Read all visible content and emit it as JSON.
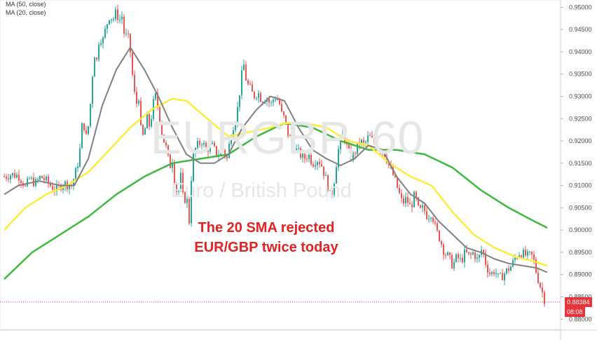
{
  "legend": {
    "ma50_label": "MA (50, close)",
    "ma20_label": "MA (20, close)"
  },
  "watermark": {
    "symbol": "EURGBP, 60",
    "name": "Euro / British Pound"
  },
  "annotation": {
    "line1": "The 20 SMA rejected",
    "line2": "EUR/GBP twice today"
  },
  "price_badge": {
    "price": "0.88384",
    "countdown": "08:08"
  },
  "colors": {
    "up": "#26a69a",
    "down": "#ef5350",
    "ma20": "#ffeb3b",
    "ma50": "#3db93d",
    "ma_short": "#808080",
    "annotation": "#e32222",
    "badge": "#e8333a"
  },
  "chart_data": {
    "type": "candlestick",
    "title": "EURGBP, 60",
    "subtitle": "Euro / British Pound",
    "ylim": [
      0.878,
      0.951
    ],
    "y_ticks": [
      0.95,
      0.945,
      0.94,
      0.935,
      0.93,
      0.925,
      0.92,
      0.915,
      0.91,
      0.905,
      0.9,
      0.895,
      0.89,
      0.885,
      0.88
    ],
    "y_tick_labels": [
      "0.95000",
      "0.94500",
      "0.94000",
      "0.93500",
      "0.93000",
      "0.92500",
      "0.92000",
      "0.91500",
      "0.91000",
      "0.90500",
      "0.90000",
      "0.89500",
      "0.89000",
      "0.88500",
      "0.88000"
    ],
    "current_price": 0.88384,
    "close_path": [
      [
        0,
        0.912
      ],
      [
        10,
        0.9125
      ],
      [
        20,
        0.9122
      ],
      [
        26,
        0.911
      ],
      [
        30,
        0.9095
      ],
      [
        36,
        0.9115
      ],
      [
        45,
        0.9105
      ],
      [
        52,
        0.912
      ],
      [
        60,
        0.911
      ],
      [
        66,
        0.91
      ],
      [
        74,
        0.909
      ],
      [
        84,
        0.9105
      ],
      [
        96,
        0.91
      ],
      [
        104,
        0.914
      ],
      [
        108,
        0.918
      ],
      [
        112,
        0.925
      ],
      [
        118,
        0.92
      ],
      [
        124,
        0.93
      ],
      [
        128,
        0.94
      ],
      [
        132,
        0.938
      ],
      [
        136,
        0.944
      ],
      [
        140,
        0.942
      ],
      [
        146,
        0.946
      ],
      [
        150,
        0.948
      ],
      [
        156,
        0.9475
      ],
      [
        160,
        0.949
      ],
      [
        164,
        0.947
      ],
      [
        168,
        0.948
      ],
      [
        172,
        0.943
      ],
      [
        176,
        0.944
      ],
      [
        180,
        0.94
      ],
      [
        184,
        0.933
      ],
      [
        188,
        0.928
      ],
      [
        192,
        0.93
      ],
      [
        196,
        0.92
      ],
      [
        200,
        0.922
      ],
      [
        204,
        0.925
      ],
      [
        208,
        0.923
      ],
      [
        212,
        0.928
      ],
      [
        216,
        0.93
      ],
      [
        220,
        0.927
      ],
      [
        226,
        0.921
      ],
      [
        232,
        0.918
      ],
      [
        236,
        0.914
      ],
      [
        240,
        0.916
      ],
      [
        244,
        0.91
      ],
      [
        248,
        0.908
      ],
      [
        252,
        0.912
      ],
      [
        256,
        0.906
      ],
      [
        260,
        0.908
      ],
      [
        264,
        0.902
      ],
      [
        268,
        0.915
      ],
      [
        272,
        0.918
      ],
      [
        276,
        0.919
      ],
      [
        282,
        0.92
      ],
      [
        288,
        0.918
      ],
      [
        296,
        0.919
      ],
      [
        304,
        0.917
      ],
      [
        312,
        0.918
      ],
      [
        318,
        0.916
      ],
      [
        324,
        0.922
      ],
      [
        330,
        0.925
      ],
      [
        334,
        0.928
      ],
      [
        338,
        0.934
      ],
      [
        342,
        0.937
      ],
      [
        346,
        0.933
      ],
      [
        350,
        0.932
      ],
      [
        356,
        0.93
      ],
      [
        362,
        0.931
      ],
      [
        368,
        0.929
      ],
      [
        374,
        0.93
      ],
      [
        380,
        0.928
      ],
      [
        386,
        0.93
      ],
      [
        392,
        0.929
      ],
      [
        396,
        0.926
      ],
      [
        400,
        0.925
      ],
      [
        404,
        0.922
      ],
      [
        410,
        0.92
      ],
      [
        416,
        0.918
      ],
      [
        422,
        0.917
      ],
      [
        428,
        0.916
      ],
      [
        434,
        0.917
      ],
      [
        440,
        0.915
      ],
      [
        446,
        0.916
      ],
      [
        452,
        0.915
      ],
      [
        458,
        0.912
      ],
      [
        462,
        0.91
      ],
      [
        466,
        0.907
      ],
      [
        470,
        0.91
      ],
      [
        474,
        0.915
      ],
      [
        478,
        0.919
      ],
      [
        484,
        0.922
      ],
      [
        490,
        0.918
      ],
      [
        496,
        0.916
      ],
      [
        502,
        0.918
      ],
      [
        508,
        0.92
      ],
      [
        514,
        0.919
      ],
      [
        520,
        0.921
      ],
      [
        526,
        0.92
      ],
      [
        532,
        0.919
      ],
      [
        538,
        0.918
      ],
      [
        544,
        0.917
      ],
      [
        550,
        0.914
      ],
      [
        556,
        0.912
      ],
      [
        562,
        0.909
      ],
      [
        568,
        0.906
      ],
      [
        574,
        0.907
      ],
      [
        580,
        0.905
      ],
      [
        586,
        0.908
      ],
      [
        592,
        0.904
      ],
      [
        598,
        0.905
      ],
      [
        604,
        0.903
      ],
      [
        610,
        0.904
      ],
      [
        616,
        0.9
      ],
      [
        622,
        0.898
      ],
      [
        628,
        0.895
      ],
      [
        634,
        0.894
      ],
      [
        640,
        0.892
      ],
      [
        646,
        0.894
      ],
      [
        652,
        0.893
      ],
      [
        658,
        0.895
      ],
      [
        664,
        0.894
      ],
      [
        670,
        0.895
      ],
      [
        676,
        0.893
      ],
      [
        682,
        0.896
      ],
      [
        688,
        0.892
      ],
      [
        694,
        0.89
      ],
      [
        700,
        0.891
      ],
      [
        706,
        0.889
      ],
      [
        712,
        0.89
      ],
      [
        718,
        0.891
      ],
      [
        724,
        0.892
      ],
      [
        730,
        0.894
      ],
      [
        736,
        0.895
      ],
      [
        742,
        0.8945
      ],
      [
        748,
        0.894
      ],
      [
        752,
        0.8945
      ],
      [
        756,
        0.893
      ],
      [
        760,
        0.89
      ],
      [
        764,
        0.888
      ],
      [
        768,
        0.886
      ],
      [
        772,
        0.884
      ]
    ],
    "series": [
      {
        "name": "MA (50, close)",
        "color": "#3db93d",
        "points": [
          [
            0,
            0.889
          ],
          [
            40,
            0.895
          ],
          [
            80,
            0.899
          ],
          [
            120,
            0.903
          ],
          [
            160,
            0.908
          ],
          [
            200,
            0.912
          ],
          [
            240,
            0.915
          ],
          [
            280,
            0.916
          ],
          [
            320,
            0.917
          ],
          [
            360,
            0.921
          ],
          [
            400,
            0.924
          ],
          [
            440,
            0.923
          ],
          [
            480,
            0.92
          ],
          [
            520,
            0.918
          ],
          [
            560,
            0.918
          ],
          [
            600,
            0.917
          ],
          [
            640,
            0.914
          ],
          [
            680,
            0.909
          ],
          [
            720,
            0.905
          ],
          [
            750,
            0.9025
          ],
          [
            775,
            0.9005
          ]
        ]
      },
      {
        "name": "MA (20, close)",
        "color": "#ffeb3b",
        "points": [
          [
            0,
            0.9
          ],
          [
            30,
            0.905
          ],
          [
            60,
            0.908
          ],
          [
            90,
            0.91
          ],
          [
            120,
            0.913
          ],
          [
            150,
            0.918
          ],
          [
            180,
            0.923
          ],
          [
            210,
            0.927
          ],
          [
            240,
            0.9295
          ],
          [
            260,
            0.929
          ],
          [
            290,
            0.925
          ],
          [
            320,
            0.921
          ],
          [
            350,
            0.922
          ],
          [
            380,
            0.923
          ],
          [
            400,
            0.924
          ],
          [
            430,
            0.924
          ],
          [
            460,
            0.923
          ],
          [
            490,
            0.92
          ],
          [
            520,
            0.919
          ],
          [
            550,
            0.915
          ],
          [
            580,
            0.912
          ],
          [
            610,
            0.91
          ],
          [
            640,
            0.904
          ],
          [
            670,
            0.899
          ],
          [
            700,
            0.896
          ],
          [
            730,
            0.894
          ],
          [
            755,
            0.893
          ],
          [
            775,
            0.892
          ]
        ]
      },
      {
        "name": "",
        "color": "#808080",
        "points": [
          [
            0,
            0.908
          ],
          [
            20,
            0.91
          ],
          [
            50,
            0.911
          ],
          [
            80,
            0.91
          ],
          [
            100,
            0.91
          ],
          [
            120,
            0.916
          ],
          [
            140,
            0.928
          ],
          [
            160,
            0.936
          ],
          [
            180,
            0.941
          ],
          [
            200,
            0.936
          ],
          [
            220,
            0.93
          ],
          [
            240,
            0.923
          ],
          [
            260,
            0.917
          ],
          [
            280,
            0.915
          ],
          [
            300,
            0.915
          ],
          [
            320,
            0.917
          ],
          [
            340,
            0.923
          ],
          [
            360,
            0.927
          ],
          [
            380,
            0.93
          ],
          [
            400,
            0.929
          ],
          [
            420,
            0.923
          ],
          [
            440,
            0.918
          ],
          [
            460,
            0.916
          ],
          [
            480,
            0.9145
          ],
          [
            500,
            0.916
          ],
          [
            520,
            0.919
          ],
          [
            540,
            0.918
          ],
          [
            560,
            0.912
          ],
          [
            580,
            0.908
          ],
          [
            600,
            0.906
          ],
          [
            620,
            0.902
          ],
          [
            640,
            0.899
          ],
          [
            660,
            0.896
          ],
          [
            680,
            0.895
          ],
          [
            700,
            0.8935
          ],
          [
            720,
            0.8925
          ],
          [
            740,
            0.892
          ],
          [
            760,
            0.8915
          ],
          [
            775,
            0.8905
          ]
        ]
      }
    ]
  }
}
